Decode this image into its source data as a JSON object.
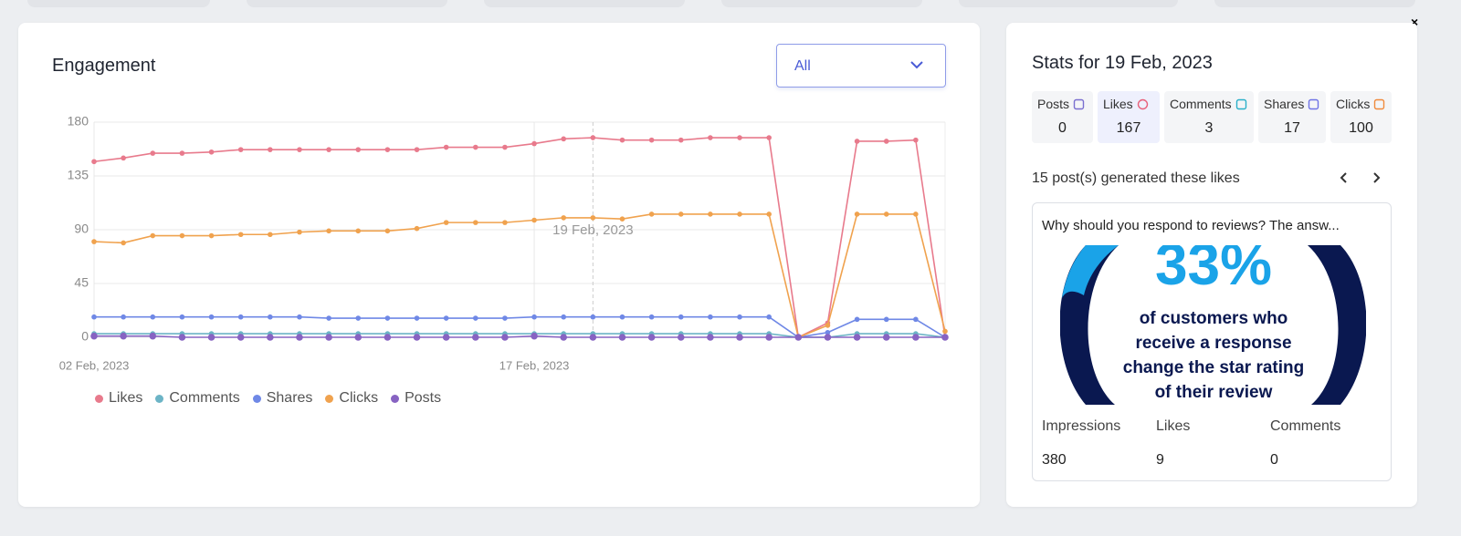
{
  "header": {
    "title": "Engagement",
    "filter": "All"
  },
  "chart_data": {
    "type": "line",
    "categories": [
      "02 Feb, 2023",
      null,
      null,
      null,
      null,
      null,
      null,
      null,
      null,
      null,
      null,
      null,
      null,
      null,
      null,
      "17 Feb, 2023",
      null,
      null,
      null,
      null,
      null,
      null,
      null,
      null,
      null,
      null,
      null,
      null,
      null,
      null
    ],
    "hover_label": "19 Feb, 2023",
    "hover_index": 17,
    "series": [
      {
        "name": "Likes",
        "color": "#e87a8c",
        "values": [
          147,
          150,
          154,
          154,
          155,
          157,
          157,
          157,
          157,
          157,
          157,
          157,
          159,
          159,
          159,
          162,
          166,
          167,
          165,
          165,
          165,
          167,
          167,
          167,
          0,
          12,
          164,
          164,
          165,
          0
        ]
      },
      {
        "name": "Comments",
        "color": "#6cb4c6",
        "values": [
          3,
          3,
          3,
          3,
          3,
          3,
          3,
          3,
          3,
          3,
          3,
          3,
          3,
          3,
          3,
          3,
          3,
          3,
          3,
          3,
          3,
          3,
          3,
          3,
          0,
          0,
          3,
          3,
          3,
          0
        ]
      },
      {
        "name": "Shares",
        "color": "#6f88e6",
        "values": [
          17,
          17,
          17,
          17,
          17,
          17,
          17,
          17,
          16,
          16,
          16,
          16,
          16,
          16,
          16,
          17,
          17,
          17,
          17,
          17,
          17,
          17,
          17,
          17,
          0,
          4,
          15,
          15,
          15,
          0
        ]
      },
      {
        "name": "Clicks",
        "color": "#f0a24e",
        "values": [
          80,
          79,
          85,
          85,
          85,
          86,
          86,
          88,
          89,
          89,
          89,
          91,
          96,
          96,
          96,
          98,
          100,
          100,
          99,
          103,
          103,
          103,
          103,
          103,
          0,
          10,
          103,
          103,
          103,
          5
        ]
      },
      {
        "name": "Posts",
        "color": "#8763c2",
        "values": [
          1,
          1,
          1,
          0,
          0,
          0,
          0,
          0,
          0,
          0,
          0,
          0,
          0,
          0,
          0,
          1,
          0,
          0,
          0,
          0,
          0,
          0,
          0,
          0,
          0,
          0,
          0,
          0,
          0,
          0
        ]
      }
    ],
    "ylim": [
      0,
      180
    ],
    "yticks": [
      0,
      45,
      90,
      135,
      180
    ],
    "grid": true
  },
  "stats": {
    "title": "Stats for 19 Feb, 2023",
    "items": [
      {
        "label": "Posts",
        "value": 0,
        "color": "#7a6fd0"
      },
      {
        "label": "Likes",
        "value": 167,
        "color": "#e8607a",
        "active": true
      },
      {
        "label": "Comments",
        "value": 3,
        "color": "#2bb0c9"
      },
      {
        "label": "Shares",
        "value": 17,
        "color": "#6f73e6"
      },
      {
        "label": "Clicks",
        "value": 100,
        "color": "#f08a3c"
      }
    ],
    "posts_note": "15 post(s) generated these likes",
    "post": {
      "title": "Why should you respond to reviews? The answ...",
      "image_text": {
        "headline": "33%",
        "lines": [
          "of customers who",
          "receive a response",
          "change the star rating",
          "of their review"
        ]
      },
      "metrics": [
        {
          "label": "Impressions",
          "value": 380
        },
        {
          "label": "Likes",
          "value": 9
        },
        {
          "label": "Comments",
          "value": 0
        }
      ]
    }
  }
}
